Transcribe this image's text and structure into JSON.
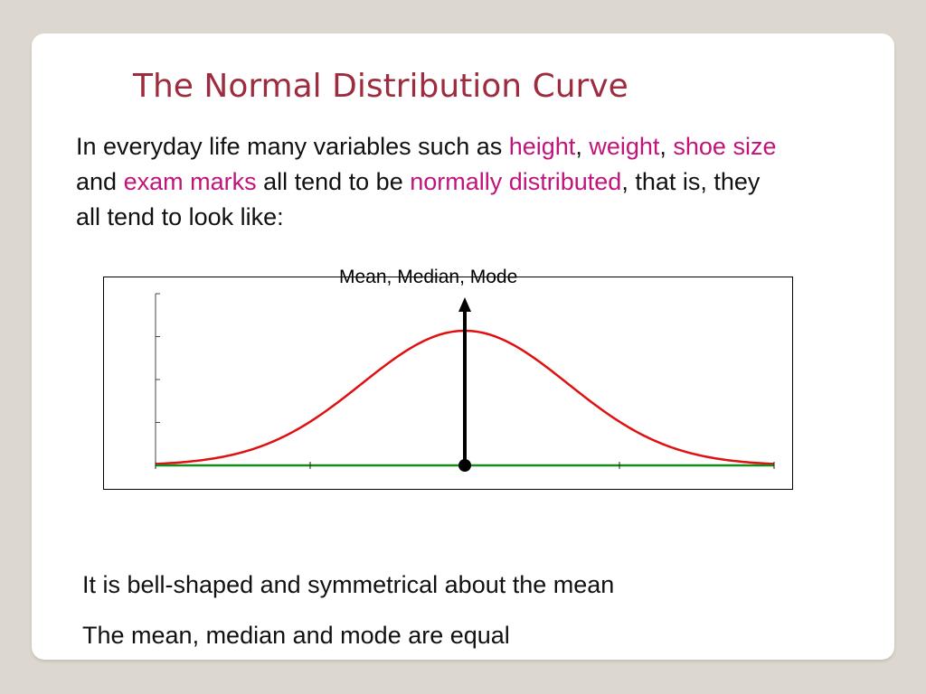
{
  "slide": {
    "title": "The Normal Distribution Curve",
    "intro": [
      {
        "text": "In everyday life many variables such as ",
        "highlight": false
      },
      {
        "text": "height",
        "highlight": true
      },
      {
        "text": ", ",
        "highlight": false
      },
      {
        "text": "weight",
        "highlight": true
      },
      {
        "text": ", ",
        "highlight": false
      },
      {
        "text": "shoe size",
        "highlight": true
      },
      {
        "text": " and ",
        "highlight": false
      },
      {
        "text": "exam marks",
        "highlight": true
      },
      {
        "text": " all tend to be ",
        "highlight": false
      },
      {
        "text": "normally distributed",
        "highlight": true
      },
      {
        "text": ", that is, they all tend to look like:",
        "highlight": false
      }
    ],
    "bullets": [
      "It is bell-shaped and symmetrical about the mean",
      "The mean, median and mode are equal"
    ]
  },
  "colors": {
    "title": "#9e2c3f",
    "highlight": "#c0147a",
    "curve": "#e01010",
    "axis": "#1a8a1a",
    "background": "#dcd8cf"
  },
  "chart_data": {
    "type": "line",
    "function": "normal density",
    "mean": 0,
    "sd": 1,
    "xlim": [
      -3,
      3
    ],
    "annotation": "Mean, Median, Mode",
    "x_ticks": 5,
    "y_ticks": 5
  }
}
